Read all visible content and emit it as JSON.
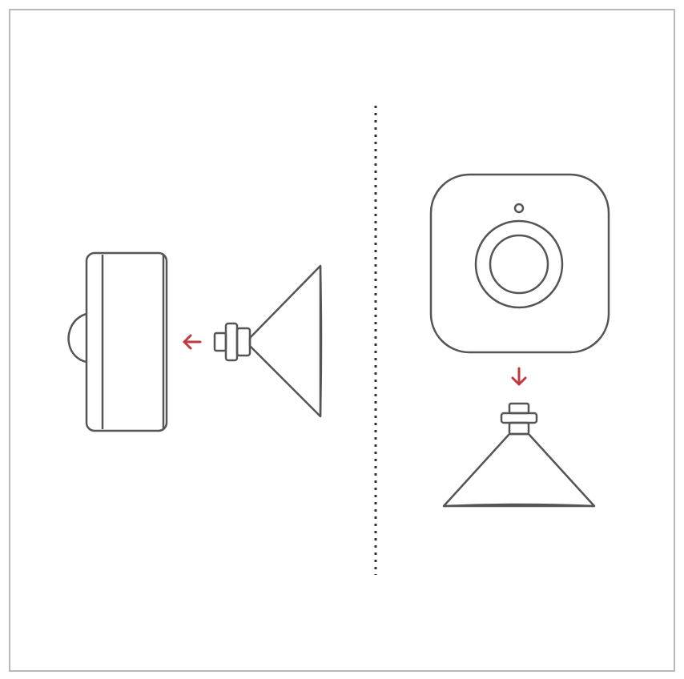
{
  "colors": {
    "background": "#ffffff",
    "border": "#b8b8b8",
    "stroke": "#555555",
    "arrow": "#c0393f",
    "divider": "#333333"
  },
  "panels": {
    "left": {
      "device": "motion-sensor-side-view",
      "mount": "magnetic-stand-side-view",
      "arrow_direction": "left"
    },
    "right": {
      "device": "motion-sensor-front-view",
      "mount": "magnetic-stand-front-view",
      "arrow_direction": "down"
    }
  }
}
